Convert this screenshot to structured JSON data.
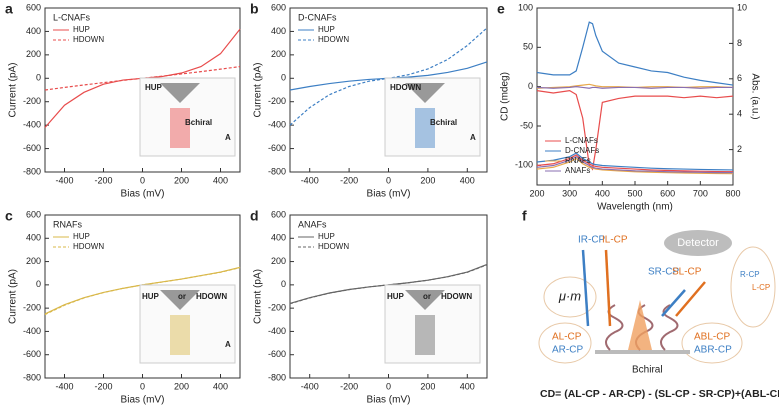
{
  "chart_data": [
    {
      "type": "line",
      "label": "a",
      "legend_title": "L-CNAFs",
      "legend_title_color": "#e84c4c",
      "legend": "upper left",
      "xlabel": "Bias (mV)",
      "ylabel": "Current (pA)",
      "x": [
        -500,
        -400,
        -300,
        -200,
        -100,
        0,
        100,
        200,
        300,
        400,
        500
      ],
      "series": [
        {
          "name": "HUP",
          "color": "#e84c4c",
          "line_style": "solid",
          "values": [
            -420,
            -230,
            -120,
            -50,
            -15,
            0,
            15,
            45,
            100,
            210,
            420
          ]
        },
        {
          "name": "HDOWN",
          "color": "#e84c4c",
          "line_style": "dashed",
          "values": [
            -100,
            -78,
            -57,
            -37,
            -18,
            0,
            18,
            37,
            57,
            78,
            100
          ]
        }
      ],
      "annotations": [
        "HUP",
        "Bchiral",
        "A"
      ],
      "xlim": [
        -500,
        500
      ],
      "xticks": [
        -400,
        -200,
        0,
        200,
        400
      ],
      "ylim": [
        -800,
        600
      ],
      "yticks": [
        -800,
        -600,
        -400,
        -200,
        0,
        200,
        400,
        600
      ]
    },
    {
      "type": "line",
      "label": "b",
      "legend_title": "D-CNAFs",
      "legend_title_color": "#3d7fc4",
      "legend": "upper left",
      "xlabel": "Bias (mV)",
      "ylabel": "Current (pA)",
      "x": [
        -500,
        -400,
        -300,
        -200,
        -100,
        0,
        100,
        200,
        300,
        400,
        500
      ],
      "series": [
        {
          "name": "HUP",
          "color": "#3d7fc4",
          "line_style": "solid",
          "values": [
            -100,
            -70,
            -45,
            -25,
            -10,
            0,
            10,
            25,
            50,
            85,
            140
          ]
        },
        {
          "name": "HDOWN",
          "color": "#3d7fc4",
          "line_style": "dashed",
          "values": [
            -400,
            -250,
            -140,
            -70,
            -25,
            0,
            30,
            80,
            160,
            280,
            430
          ]
        }
      ],
      "annotations": [
        "HDOWN",
        "Bchiral",
        "A"
      ],
      "xlim": [
        -500,
        500
      ],
      "xticks": [
        -400,
        -200,
        0,
        200,
        400
      ],
      "ylim": [
        -800,
        600
      ],
      "yticks": [
        -800,
        -600,
        -400,
        -200,
        0,
        200,
        400,
        600
      ]
    },
    {
      "type": "line",
      "label": "c",
      "legend_title": "RNAFs",
      "legend_title_color": "#e8c04a",
      "legend": "upper left",
      "xlabel": "Bias (mV)",
      "ylabel": "Current (pA)",
      "x": [
        -500,
        -400,
        -300,
        -200,
        -100,
        0,
        100,
        200,
        300,
        400,
        500
      ],
      "series": [
        {
          "name": "HUP",
          "color": "#d9b84a",
          "line_style": "solid",
          "values": [
            -250,
            -170,
            -110,
            -65,
            -30,
            0,
            25,
            50,
            80,
            110,
            150
          ]
        },
        {
          "name": "HDOWN",
          "color": "#d9b84a",
          "line_style": "dashed",
          "values": [
            -255,
            -175,
            -112,
            -66,
            -30,
            0,
            24,
            50,
            79,
            108,
            148
          ]
        }
      ],
      "annotations": [
        "HUP",
        "or",
        "HDOWN",
        "A"
      ],
      "xlim": [
        -500,
        500
      ],
      "xticks": [
        -400,
        -200,
        0,
        200,
        400
      ],
      "ylim": [
        -800,
        600
      ],
      "yticks": [
        -800,
        -600,
        -400,
        -200,
        0,
        200,
        400,
        600
      ]
    },
    {
      "type": "line",
      "label": "d",
      "legend_title": "ANAFs",
      "legend_title_color": "#888888",
      "legend": "upper left",
      "xlabel": "Bias (mV)",
      "ylabel": "Current (pA)",
      "x": [
        -500,
        -400,
        -300,
        -200,
        -100,
        0,
        100,
        200,
        300,
        400,
        500
      ],
      "series": [
        {
          "name": "HUP",
          "color": "#666666",
          "line_style": "solid",
          "values": [
            -160,
            -110,
            -70,
            -40,
            -18,
            0,
            18,
            40,
            70,
            110,
            175
          ]
        },
        {
          "name": "HDOWN",
          "color": "#666666",
          "line_style": "dashed",
          "values": [
            -162,
            -112,
            -71,
            -41,
            -18,
            0,
            18,
            40,
            69,
            108,
            172
          ]
        }
      ],
      "annotations": [
        "HUP",
        "or",
        "HDOWN"
      ],
      "xlim": [
        -500,
        500
      ],
      "xticks": [
        -400,
        -200,
        0,
        200,
        400
      ],
      "ylim": [
        -800,
        600
      ],
      "yticks": [
        -800,
        -600,
        -400,
        -200,
        0,
        200,
        400,
        600
      ]
    },
    {
      "type": "line",
      "label": "e",
      "legend": "lower left",
      "xlabel": "Wavelength (nm)",
      "ylabel": "CD (mdeg)",
      "y2label": "Abs. (a.u.)",
      "x": [
        200,
        250,
        300,
        320,
        340,
        360,
        370,
        380,
        400,
        450,
        500,
        550,
        600,
        650,
        700,
        750,
        800
      ],
      "series": [
        {
          "name": "L-CNAFs",
          "color": "#e84c4c",
          "line_style": "solid",
          "values": [
            -5,
            -8,
            -5,
            -10,
            -40,
            -100,
            -105,
            -80,
            -20,
            -15,
            -12,
            -12,
            -12,
            -14,
            -12,
            -14,
            -12
          ]
        },
        {
          "name": "D-CNAFs",
          "color": "#3d7fc4",
          "line_style": "solid",
          "values": [
            18,
            15,
            15,
            20,
            50,
            82,
            80,
            65,
            45,
            30,
            25,
            20,
            18,
            12,
            8,
            5,
            2
          ]
        },
        {
          "name": "RNAFs",
          "color": "#e8a84a",
          "line_style": "solid",
          "values": [
            -2,
            -1,
            0,
            1,
            2,
            3,
            2,
            1,
            0,
            0,
            -1,
            0,
            0,
            -1,
            0,
            0,
            -1
          ]
        },
        {
          "name": "ANAFs",
          "color": "#8a6fb0",
          "line_style": "solid",
          "values": [
            -1,
            -2,
            -1,
            0,
            -1,
            -2,
            -1,
            -1,
            -2,
            -1,
            -1,
            -2,
            -1,
            -1,
            -2,
            -1,
            -1
          ]
        },
        {
          "name": "L-CNAFs",
          "color": "#e84c4c",
          "line_style": "solid",
          "axis": "y2",
          "values": [
            1.1,
            1.2,
            1.5,
            1.7,
            1.4,
            1.2,
            1.1,
            1.05,
            1.0,
            0.95,
            0.9,
            0.85,
            0.82,
            0.8,
            0.78,
            0.76,
            0.75
          ]
        },
        {
          "name": "D-CNAFs",
          "color": "#3d7fc4",
          "line_style": "solid",
          "axis": "y2",
          "values": [
            1.3,
            1.4,
            1.6,
            1.8,
            1.5,
            1.3,
            1.2,
            1.15,
            1.1,
            1.05,
            1.0,
            0.95,
            0.92,
            0.9,
            0.88,
            0.86,
            0.85
          ]
        },
        {
          "name": "RNAFs",
          "color": "#e8a84a",
          "line_style": "solid",
          "axis": "y2",
          "values": [
            0.9,
            1.0,
            1.3,
            1.5,
            1.2,
            1.0,
            0.95,
            0.9,
            0.85,
            0.8,
            0.75,
            0.72,
            0.7,
            0.68,
            0.66,
            0.65,
            0.64
          ]
        },
        {
          "name": "ANAFs",
          "color": "#8a6fb0",
          "line_style": "solid",
          "axis": "y2",
          "values": [
            1.0,
            1.1,
            1.4,
            1.6,
            1.3,
            1.1,
            1.0,
            0.95,
            0.9,
            0.85,
            0.8,
            0.78,
            0.75,
            0.73,
            0.72,
            0.7,
            0.7
          ]
        }
      ],
      "xlim": [
        200,
        800
      ],
      "xticks": [
        200,
        300,
        400,
        500,
        600,
        700,
        800
      ],
      "ylim": [
        -125,
        100
      ],
      "yticks": [
        -100,
        -50,
        0,
        50,
        100
      ],
      "y2lim": [
        0,
        10
      ],
      "y2ticks": [
        2,
        4,
        6,
        8,
        10
      ]
    }
  ],
  "diagram": {
    "label": "f",
    "detector": "Detector",
    "unit": "μ·m",
    "labels": [
      "IR-CP",
      "IL-CP",
      "SR-CP",
      "SL-CP",
      "AL-CP",
      "AR-CP",
      "Bchiral",
      "ABL-CP",
      "ABR-CP",
      "R-CP",
      "L-CP"
    ],
    "equation": "CD= (AL-CP - AR-CP) - (SL-CP - SR-CP)+(ABL-CP - ABR-CP)"
  }
}
